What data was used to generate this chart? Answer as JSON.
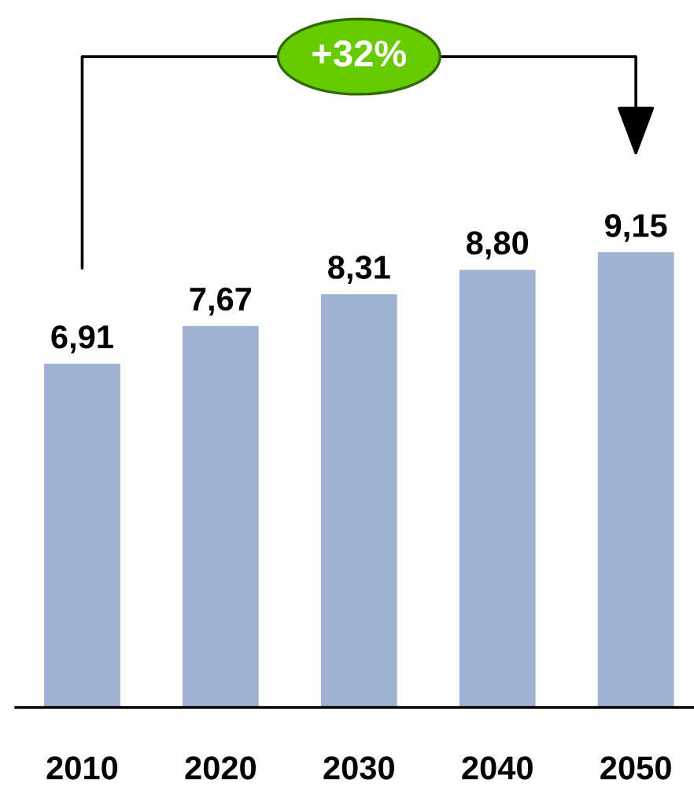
{
  "chart_data": {
    "type": "bar",
    "categories": [
      "2010",
      "2020",
      "2030",
      "2040",
      "2050"
    ],
    "values": [
      6.91,
      7.67,
      8.31,
      8.8,
      9.15
    ],
    "value_labels": [
      "6,91",
      "7,67",
      "8,31",
      "8,80",
      "9,15"
    ],
    "color": "#9fb1d2",
    "annotations": [
      "+32%"
    ]
  }
}
